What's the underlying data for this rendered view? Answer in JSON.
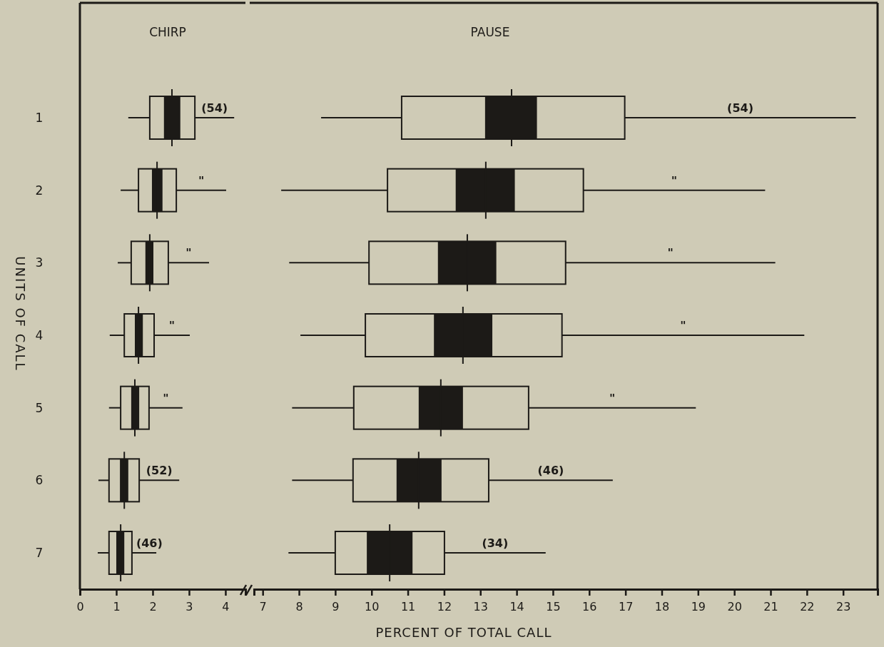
{
  "chart_data": [
    {
      "type": "box",
      "title": "CHIRP",
      "ylabel": "UNITS OF CALL",
      "orientation": "horizontal",
      "categories": [
        "1",
        "2",
        "3",
        "4",
        "5",
        "6",
        "7"
      ],
      "xlim": [
        0,
        4.55
      ],
      "xticks": [
        0,
        1,
        2,
        3,
        4
      ],
      "series": [
        {
          "type": "bar",
          "color": "#1c1a17",
          "base": [
            2.31,
            1.98,
            1.8,
            1.51,
            1.41,
            1.1,
            1.0
          ],
          "values": [
            0.45,
            0.29,
            0.22,
            0.22,
            0.22,
            0.23,
            0.22
          ]
        },
        {
          "type": "box",
          "color": "#1c1a17",
          "boxes": [
            {
              "low": 1.33,
              "q1": 1.92,
              "median": 2.53,
              "q3": 3.16,
              "high": 4.24
            },
            {
              "low": 1.12,
              "q1": 1.61,
              "median": 2.12,
              "q3": 2.65,
              "high": 4.02
            },
            {
              "low": 1.04,
              "q1": 1.41,
              "median": 1.92,
              "q3": 2.43,
              "high": 3.55
            },
            {
              "low": 0.82,
              "q1": 1.22,
              "median": 1.61,
              "q3": 2.04,
              "high": 3.02
            },
            {
              "low": 0.8,
              "q1": 1.12,
              "median": 1.51,
              "q3": 1.9,
              "high": 2.82
            },
            {
              "low": 0.51,
              "q1": 0.8,
              "median": 1.22,
              "q3": 1.63,
              "high": 2.73
            },
            {
              "low": 0.49,
              "q1": 0.8,
              "median": 1.12,
              "q3": 1.43,
              "high": 2.1
            }
          ]
        }
      ],
      "annotations": [
        "(54)",
        "\"",
        "\"",
        "\"",
        "\"",
        "(52)",
        "(46)"
      ]
    },
    {
      "type": "box",
      "title": "PAUSE",
      "xlabel": "PERCENT OF TOTAL CALL",
      "orientation": "horizontal",
      "categories": [
        "1",
        "2",
        "3",
        "4",
        "5",
        "6",
        "7"
      ],
      "xlim": [
        6.76,
        23.95
      ],
      "xticks": [
        7,
        8,
        9,
        10,
        11,
        12,
        13,
        14,
        15,
        16,
        17,
        18,
        19,
        20,
        21,
        22,
        23
      ],
      "tick_labels": "x",
      "series": [
        {
          "type": "bar",
          "color": "#1c1a17",
          "base": [
            13.13,
            12.32,
            11.83,
            11.72,
            11.3,
            10.69,
            9.87
          ],
          "values": [
            1.43,
            1.63,
            1.61,
            1.61,
            1.22,
            1.24,
            1.26
          ]
        },
        {
          "type": "box",
          "color": "#1c1a17",
          "boxes": [
            {
              "low": 8.61,
              "q1": 10.83,
              "median": 13.86,
              "q3": 16.98,
              "high": 23.35
            },
            {
              "low": 7.51,
              "q1": 10.44,
              "median": 13.15,
              "q3": 15.84,
              "high": 20.85
            },
            {
              "low": 7.73,
              "q1": 9.93,
              "median": 12.64,
              "q3": 15.35,
              "high": 21.13
            },
            {
              "low": 8.04,
              "q1": 9.83,
              "median": 12.52,
              "q3": 15.25,
              "high": 21.93
            },
            {
              "low": 7.81,
              "q1": 9.51,
              "median": 11.91,
              "q3": 14.33,
              "high": 18.94
            },
            {
              "low": 7.81,
              "q1": 9.49,
              "median": 11.3,
              "q3": 13.23,
              "high": 16.65
            },
            {
              "low": 7.71,
              "q1": 9.0,
              "median": 10.5,
              "q3": 12.01,
              "high": 14.8
            }
          ]
        }
      ],
      "annotations": [
        "(54)",
        "\"",
        "\"",
        "\"",
        "\"",
        "(46)",
        "(34)"
      ]
    }
  ]
}
